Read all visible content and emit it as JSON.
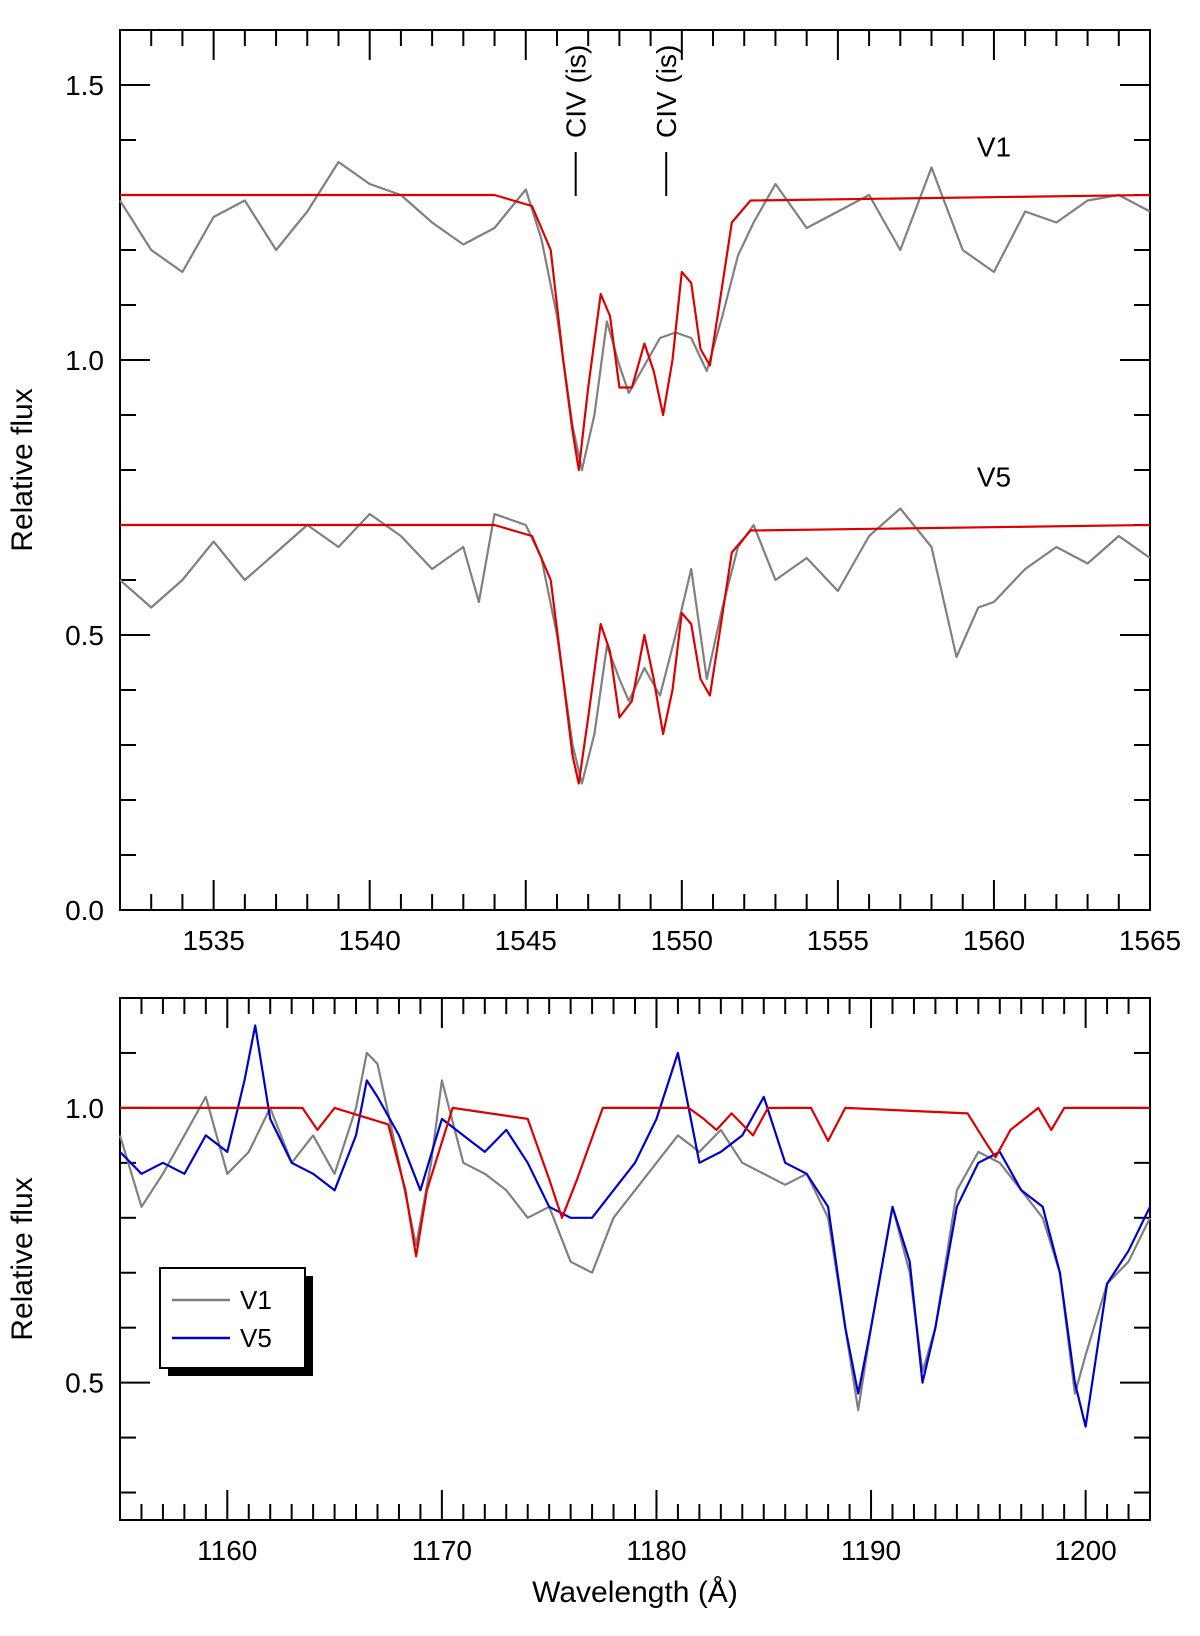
{
  "chart_data": [
    {
      "type": "line",
      "panel": "top",
      "title": "",
      "xlabel": "",
      "ylabel": "Relative flux",
      "xlim": [
        1532,
        1565
      ],
      "ylim": [
        0.0,
        1.6
      ],
      "xticks": [
        1535,
        1540,
        1545,
        1550,
        1555,
        1560,
        1565
      ],
      "xtick_labels": [
        "1535",
        "1540",
        "1545",
        "1550",
        "1555",
        "1560",
        "1565"
      ],
      "yticks": [
        0.0,
        0.5,
        1.0,
        1.5
      ],
      "ytick_labels": [
        "0.0",
        "0.5",
        "1.0",
        "1.5"
      ],
      "annotations": [
        {
          "text": "CIV (is)",
          "x": 1546.6
        },
        {
          "text": "CIV (is)",
          "x": 1549.5
        }
      ],
      "curve_labels": [
        {
          "text": "V1",
          "x": 1560.0,
          "y": 1.37
        },
        {
          "text": "V5",
          "x": 1560.0,
          "y": 0.77
        }
      ],
      "series": [
        {
          "name": "V1 observed",
          "color": "#808080",
          "x": [
            1532,
            1533,
            1534,
            1535,
            1536,
            1537,
            1538,
            1539,
            1540,
            1541,
            1542,
            1543,
            1544,
            1545,
            1545.5,
            1546,
            1546.5,
            1546.8,
            1547.2,
            1547.6,
            1548,
            1548.3,
            1548.8,
            1549.3,
            1549.8,
            1550.3,
            1550.8,
            1551.3,
            1551.8,
            1552.3,
            1553,
            1554,
            1555,
            1556,
            1557,
            1558,
            1559,
            1560,
            1561,
            1562,
            1563,
            1564,
            1565
          ],
          "values": [
            1.29,
            1.2,
            1.16,
            1.26,
            1.29,
            1.2,
            1.27,
            1.36,
            1.32,
            1.3,
            1.25,
            1.21,
            1.24,
            1.31,
            1.22,
            1.08,
            0.88,
            0.8,
            0.9,
            1.07,
            0.99,
            0.94,
            0.99,
            1.04,
            1.05,
            1.04,
            0.98,
            1.08,
            1.19,
            1.25,
            1.32,
            1.24,
            1.27,
            1.3,
            1.2,
            1.35,
            1.2,
            1.16,
            1.27,
            1.25,
            1.29,
            1.3,
            1.27
          ]
        },
        {
          "name": "V1 model",
          "color": "#dd0000",
          "x": [
            1532,
            1544,
            1545.2,
            1545.8,
            1546.2,
            1546.5,
            1546.7,
            1547.0,
            1547.4,
            1547.7,
            1548.0,
            1548.4,
            1548.8,
            1549.1,
            1549.4,
            1549.7,
            1550.0,
            1550.3,
            1550.6,
            1550.9,
            1551.2,
            1551.6,
            1552.2,
            1565
          ],
          "values": [
            1.3,
            1.3,
            1.28,
            1.2,
            1.0,
            0.87,
            0.8,
            0.95,
            1.12,
            1.08,
            0.95,
            0.95,
            1.03,
            0.98,
            0.9,
            1.0,
            1.16,
            1.14,
            1.02,
            0.99,
            1.1,
            1.25,
            1.29,
            1.3
          ]
        },
        {
          "name": "V5 observed",
          "color": "#808080",
          "x": [
            1532,
            1533,
            1534,
            1535,
            1536,
            1537,
            1538,
            1539,
            1540,
            1541,
            1542,
            1543,
            1543.5,
            1544,
            1545,
            1545.5,
            1546,
            1546.5,
            1546.8,
            1547.2,
            1547.6,
            1548,
            1548.3,
            1548.8,
            1549.3,
            1549.8,
            1550.3,
            1550.8,
            1551.3,
            1551.8,
            1552.3,
            1553,
            1554,
            1555,
            1556,
            1557,
            1558,
            1558.8,
            1559.5,
            1560,
            1561,
            1562,
            1563,
            1564,
            1565
          ],
          "values": [
            0.6,
            0.55,
            0.6,
            0.67,
            0.6,
            0.65,
            0.7,
            0.66,
            0.72,
            0.68,
            0.62,
            0.66,
            0.56,
            0.72,
            0.7,
            0.64,
            0.5,
            0.3,
            0.23,
            0.32,
            0.48,
            0.42,
            0.38,
            0.44,
            0.39,
            0.5,
            0.62,
            0.42,
            0.55,
            0.66,
            0.7,
            0.6,
            0.64,
            0.58,
            0.68,
            0.73,
            0.66,
            0.46,
            0.55,
            0.56,
            0.62,
            0.66,
            0.63,
            0.68,
            0.64
          ]
        },
        {
          "name": "V5 model",
          "color": "#dd0000",
          "x": [
            1532,
            1544,
            1545.2,
            1545.8,
            1546.2,
            1546.5,
            1546.7,
            1547.0,
            1547.4,
            1547.7,
            1548.0,
            1548.4,
            1548.8,
            1549.1,
            1549.4,
            1549.7,
            1550.0,
            1550.3,
            1550.6,
            1550.9,
            1551.2,
            1551.6,
            1552.2,
            1565
          ],
          "values": [
            0.7,
            0.7,
            0.68,
            0.6,
            0.42,
            0.28,
            0.23,
            0.35,
            0.52,
            0.47,
            0.35,
            0.38,
            0.5,
            0.42,
            0.32,
            0.4,
            0.54,
            0.52,
            0.42,
            0.39,
            0.5,
            0.65,
            0.69,
            0.7
          ]
        }
      ]
    },
    {
      "type": "line",
      "panel": "bottom",
      "title": "",
      "xlabel": "Wavelength (Å)",
      "ylabel": "Relative flux",
      "xlim": [
        1155,
        1203
      ],
      "ylim": [
        0.25,
        1.2
      ],
      "xticks": [
        1160,
        1170,
        1180,
        1190,
        1200
      ],
      "xtick_labels": [
        "1160",
        "1170",
        "1180",
        "1190",
        "1200"
      ],
      "yticks": [
        0.5,
        1.0
      ],
      "ytick_labels": [
        "0.5",
        "1.0"
      ],
      "legend": {
        "position": "bottom-left",
        "entries": [
          {
            "label": "V1",
            "color": "#808080"
          },
          {
            "label": "V5",
            "color": "#0000cc"
          }
        ]
      },
      "series": [
        {
          "name": "V1",
          "color": "#808080",
          "x": [
            1155,
            1156,
            1157,
            1158,
            1159,
            1160,
            1161,
            1162,
            1163,
            1164,
            1165,
            1166,
            1166.5,
            1167,
            1168,
            1168.8,
            1169.5,
            1170,
            1171,
            1172,
            1173,
            1174,
            1175,
            1176,
            1177,
            1178,
            1179,
            1180,
            1181,
            1182,
            1183,
            1184,
            1185,
            1186,
            1187,
            1188,
            1188.8,
            1189.4,
            1190,
            1191,
            1191.8,
            1192.4,
            1193,
            1194,
            1195,
            1196,
            1197,
            1198,
            1198.8,
            1199.5,
            1200,
            1201,
            1202,
            1203
          ],
          "values": [
            0.95,
            0.82,
            0.88,
            0.95,
            1.02,
            0.88,
            0.92,
            1.0,
            0.9,
            0.95,
            0.88,
            1.0,
            1.1,
            1.08,
            0.9,
            0.75,
            0.9,
            1.05,
            0.9,
            0.88,
            0.85,
            0.8,
            0.82,
            0.72,
            0.7,
            0.8,
            0.85,
            0.9,
            0.95,
            0.92,
            0.96,
            0.9,
            0.88,
            0.86,
            0.88,
            0.8,
            0.6,
            0.45,
            0.6,
            0.82,
            0.7,
            0.52,
            0.6,
            0.85,
            0.92,
            0.9,
            0.85,
            0.8,
            0.7,
            0.48,
            0.55,
            0.68,
            0.72,
            0.8
          ]
        },
        {
          "name": "V5",
          "color": "#0000cc",
          "x": [
            1155,
            1156,
            1157,
            1158,
            1159,
            1160,
            1160.8,
            1161.3,
            1162,
            1163,
            1164,
            1165,
            1166,
            1166.5,
            1167,
            1168,
            1169,
            1170,
            1171,
            1172,
            1173,
            1174,
            1175,
            1176,
            1177,
            1178,
            1179,
            1180,
            1181,
            1182,
            1183,
            1184,
            1185,
            1186,
            1187,
            1188,
            1188.8,
            1189.4,
            1190,
            1191,
            1191.8,
            1192.4,
            1193,
            1194,
            1195,
            1196,
            1197,
            1198,
            1198.8,
            1199.5,
            1200,
            1201,
            1202,
            1203
          ],
          "values": [
            0.92,
            0.88,
            0.9,
            0.88,
            0.95,
            0.92,
            1.05,
            1.15,
            0.98,
            0.9,
            0.88,
            0.85,
            0.95,
            1.05,
            1.02,
            0.95,
            0.85,
            0.98,
            0.95,
            0.92,
            0.96,
            0.9,
            0.82,
            0.8,
            0.8,
            0.85,
            0.9,
            0.98,
            1.1,
            0.9,
            0.92,
            0.95,
            1.02,
            0.9,
            0.88,
            0.82,
            0.6,
            0.48,
            0.6,
            0.82,
            0.72,
            0.5,
            0.6,
            0.82,
            0.9,
            0.92,
            0.85,
            0.82,
            0.7,
            0.5,
            0.42,
            0.68,
            0.74,
            0.82
          ]
        },
        {
          "name": "model",
          "color": "#dd0000",
          "x": [
            1155,
            1163.5,
            1164.2,
            1165,
            1167.5,
            1168.3,
            1168.8,
            1169.3,
            1170.5,
            1174,
            1175,
            1175.6,
            1176.3,
            1177.5,
            1181.5,
            1182.2,
            1182.8,
            1183.5,
            1184,
            1184.5,
            1185.2,
            1187.2,
            1188,
            1188.8,
            1194.5,
            1195.3,
            1195.8,
            1196.5,
            1197.8,
            1198.4,
            1199,
            1203
          ],
          "values": [
            1.0,
            1.0,
            0.96,
            1.0,
            0.97,
            0.85,
            0.73,
            0.85,
            1.0,
            0.98,
            0.87,
            0.8,
            0.87,
            1.0,
            1.0,
            0.98,
            0.96,
            0.99,
            0.97,
            0.95,
            1.0,
            1.0,
            0.94,
            1.0,
            0.99,
            0.94,
            0.91,
            0.96,
            1.0,
            0.96,
            1.0,
            1.0
          ]
        }
      ]
    }
  ]
}
